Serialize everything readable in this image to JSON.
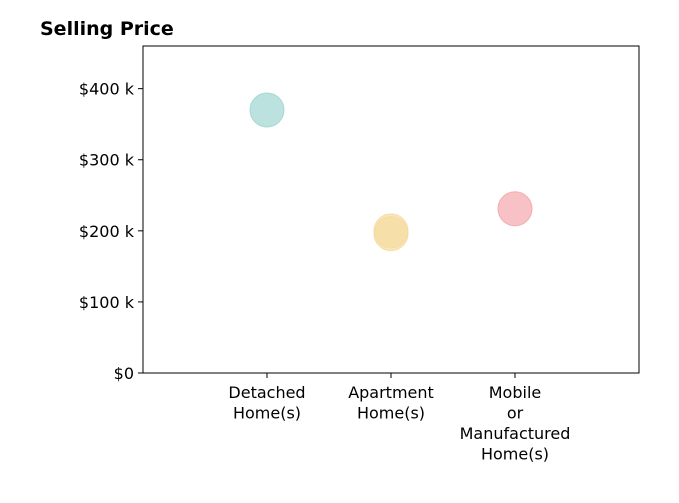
{
  "chart_data": {
    "type": "scatter",
    "title": "Selling Price",
    "xlabel": "",
    "ylabel": "",
    "categories": [
      [
        "Detached",
        "Home(s)"
      ],
      [
        "Apartment",
        "Home(s)"
      ],
      [
        "Mobile",
        "or",
        "Manufactured",
        "Home(s)"
      ]
    ],
    "ylim": [
      0,
      460000
    ],
    "yticks": [
      0,
      100000,
      200000,
      300000,
      400000
    ],
    "ytick_labels": [
      "$0",
      "$100 k",
      "$200 k",
      "$300 k",
      "$400 k"
    ],
    "grid": false,
    "points": [
      {
        "category_index": 0,
        "y": 370000,
        "color": "#9fd6d2"
      },
      {
        "category_index": 1,
        "y": 200000,
        "color": "#f5dca0"
      },
      {
        "category_index": 1,
        "y": 196000,
        "color": "#f5dca0"
      },
      {
        "category_index": 2,
        "y": 231000,
        "color": "#f4a7ad"
      }
    ]
  }
}
